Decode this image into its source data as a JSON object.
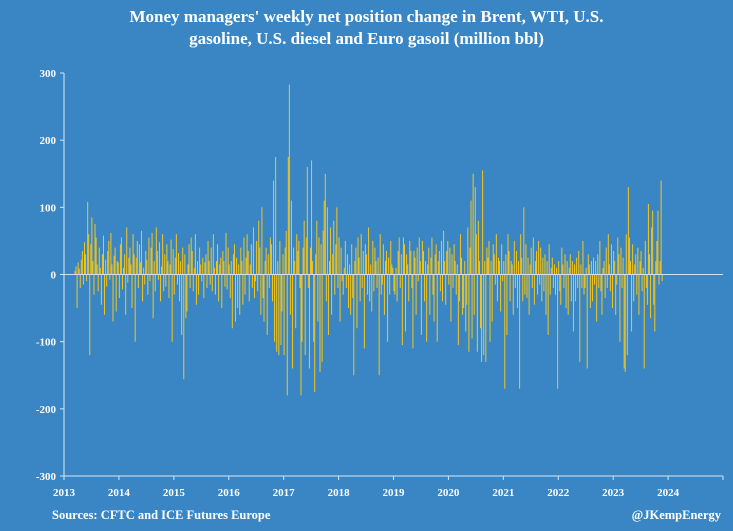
{
  "chart_data": {
    "type": "bar",
    "title_line1": "Money managers' weekly net position change in Brent, WTI, U.S.",
    "title_line2": "gasoline, U.S. diesel and Euro gasoil (million bbl)",
    "xlabel": "",
    "ylabel": "",
    "ylim": [
      -300,
      300
    ],
    "yticks": [
      -300,
      -200,
      -100,
      0,
      100,
      200,
      300
    ],
    "xlim": [
      2013,
      2025
    ],
    "xticks": [
      "2013",
      "2014",
      "2015",
      "2016",
      "2017",
      "2018",
      "2019",
      "2020",
      "2021",
      "2022",
      "2023",
      "2024"
    ],
    "grid": false,
    "bar_color": "#f5c518",
    "x_start": 2013.2,
    "bars_per_year": 52,
    "values": [
      5,
      12,
      -50,
      18,
      9,
      -20,
      22,
      35,
      -15,
      48,
      30,
      -10,
      108,
      60,
      -120,
      45,
      85,
      20,
      -30,
      75,
      55,
      15,
      -25,
      40,
      10,
      -45,
      30,
      58,
      -60,
      22,
      -18,
      35,
      50,
      -8,
      62,
      15,
      -70,
      28,
      40,
      -55,
      20,
      18,
      -35,
      45,
      55,
      -22,
      10,
      30,
      -60,
      70,
      -12,
      25,
      40,
      15,
      -50,
      60,
      30,
      -100,
      25,
      50,
      -20,
      45,
      18,
      65,
      -40,
      10,
      -15,
      35,
      22,
      -30,
      55,
      -10,
      40,
      62,
      -65,
      20,
      -25,
      70,
      35,
      -8,
      48,
      -40,
      12,
      60,
      -25,
      30,
      -18,
      45,
      20,
      -35,
      15,
      52,
      -100,
      38,
      -30,
      25,
      60,
      -15,
      32,
      -40,
      20,
      -90,
      40,
      -156,
      30,
      -65,
      -55,
      15,
      45,
      -20,
      55,
      35,
      -25,
      10,
      60,
      -45,
      20,
      -30,
      40,
      15,
      -10,
      25,
      -35,
      18,
      30,
      -20,
      50,
      20,
      -15,
      40,
      -25,
      60,
      10,
      -30,
      20,
      45,
      -40,
      15,
      25,
      -50,
      35,
      20,
      -18,
      62,
      -22,
      40,
      15,
      -35,
      20,
      -80,
      30,
      45,
      -70,
      25,
      -50,
      15,
      -60,
      40,
      20,
      -45,
      55,
      -30,
      25,
      60,
      35,
      -40,
      15,
      45,
      -20,
      70,
      -35,
      -10,
      50,
      -25,
      80,
      40,
      -60,
      100,
      -35,
      -70,
      20,
      40,
      -90,
      30,
      -20,
      55,
      45,
      -40,
      140,
      -100,
      175,
      -115,
      20,
      -120,
      50,
      -105,
      -55,
      30,
      -120,
      40,
      65,
      -180,
      175,
      283,
      -60,
      110,
      -140,
      40,
      20,
      -80,
      60,
      35,
      50,
      -20,
      -180,
      -100,
      40,
      80,
      -120,
      55,
      160,
      -20,
      -140,
      40,
      170,
      20,
      -100,
      -175,
      30,
      80,
      -70,
      55,
      -145,
      45,
      -130,
      65,
      110,
      150,
      -40,
      100,
      -90,
      20,
      70,
      -60,
      30,
      80,
      -30,
      45,
      100,
      -20,
      55,
      -70,
      40,
      -10,
      -30,
      10,
      50,
      -20,
      30,
      -50,
      15,
      -60,
      45,
      -35,
      -150,
      20,
      40,
      -80,
      55,
      25,
      -40,
      60,
      -20,
      35,
      -110,
      45,
      30,
      -30,
      70,
      -40,
      15,
      -55,
      50,
      -25,
      40,
      20,
      -20,
      25,
      -150,
      60,
      -30,
      -15,
      45,
      -60,
      20,
      35,
      -100,
      25,
      -30,
      50,
      15,
      10,
      -25,
      -30,
      10,
      -40,
      35,
      55,
      -20,
      30,
      -105,
      55,
      45,
      -85,
      30,
      15,
      -40,
      50,
      35,
      -20,
      -110,
      35,
      25,
      -60,
      40,
      -10,
      55,
      20,
      -90,
      50,
      35,
      -40,
      20,
      -100,
      15,
      40,
      -60,
      25,
      55,
      -30,
      -70,
      30,
      45,
      -100,
      20,
      35,
      -25,
      50,
      -40,
      65,
      20,
      -45,
      35,
      50,
      -15,
      40,
      -70,
      30,
      -20,
      45,
      20,
      -30,
      15,
      -105,
      -40,
      60,
      25,
      -60,
      -50,
      20,
      -85,
      -45,
      70,
      -115,
      40,
      110,
      -95,
      150,
      -60,
      130,
      60,
      -115,
      80,
      20,
      -80,
      -130,
      155,
      -120,
      20,
      -130,
      40,
      25,
      50,
      -100,
      20,
      -70,
      45,
      30,
      -15,
      60,
      -40,
      25,
      20,
      -55,
      45,
      -10,
      20,
      -170,
      30,
      -90,
      60,
      35,
      -40,
      20,
      15,
      -60,
      50,
      -20,
      35,
      -50,
      20,
      -170,
      60,
      25,
      -40,
      100,
      -30,
      45,
      -35,
      25,
      -60,
      15,
      40,
      -20,
      55,
      -45,
      20,
      35,
      -30,
      50,
      -15,
      40,
      -40,
      25,
      -25,
      30,
      -60,
      20,
      -90,
      45,
      -30,
      10,
      25,
      -20,
      15,
      -30,
      10,
      -170,
      20,
      -25,
      -45,
      40,
      15,
      -20,
      30,
      -50,
      20,
      -60,
      10,
      30,
      -40,
      20,
      -85,
      15,
      -40,
      25,
      -20,
      35,
      -130,
      15,
      -20,
      50,
      -30,
      -20,
      10,
      -140,
      30,
      15,
      -50,
      20,
      -40,
      25,
      -15,
      20,
      -70,
      30,
      -20,
      50,
      -25,
      -60,
      10,
      20,
      -35,
      40,
      -20,
      60,
      15,
      -25,
      45,
      -50,
      35,
      20,
      -60,
      -15,
      55,
      30,
      -100,
      40,
      -20,
      25,
      -140,
      -145,
      60,
      -120,
      130,
      55,
      20,
      -85,
      45,
      -40,
      15,
      30,
      -30,
      40,
      -60,
      20,
      35,
      -25,
      10,
      -140,
      50,
      -20,
      -45,
      105,
      30,
      -65,
      70,
      95,
      -45,
      -85,
      20,
      50,
      95,
      -15,
      20,
      140,
      -10
    ]
  },
  "sources": "Sources: CFTC and ICE Futures Europe",
  "credit": "@JKempEnergy"
}
